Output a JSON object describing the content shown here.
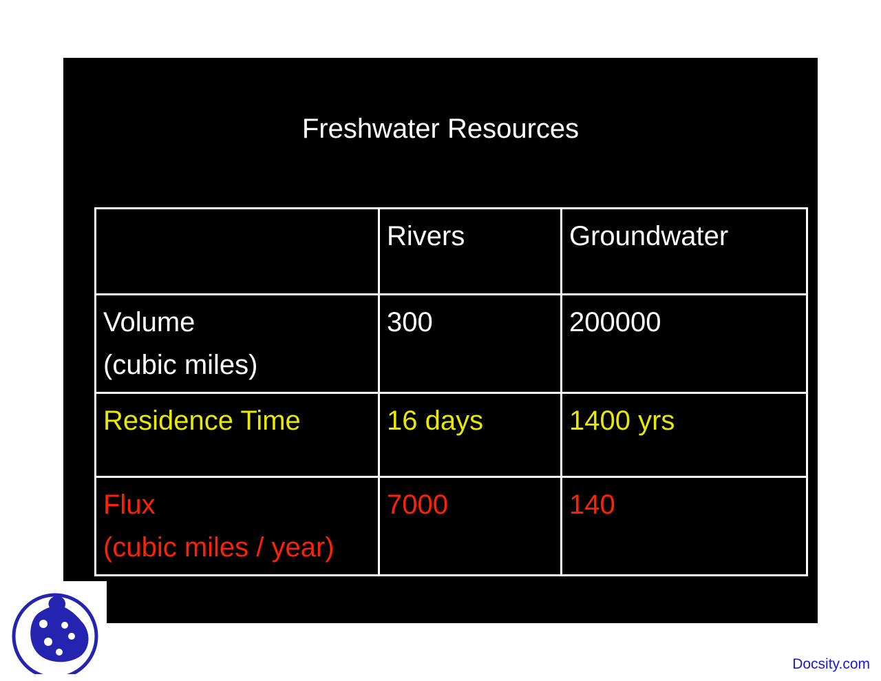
{
  "slide": {
    "title": "Freshwater Resources",
    "colors": {
      "background": "#000000",
      "text": "#ffffff",
      "residence": "#e8e800",
      "flux": "#ff2200",
      "brand": "#1a1acc"
    }
  },
  "table": {
    "header": [
      "",
      "Rivers",
      "Groundwater"
    ],
    "rows": [
      {
        "label_lines": [
          "Volume",
          "(cubic miles)"
        ],
        "rivers": "300",
        "groundwater": "200000"
      },
      {
        "label_lines": [
          "Residence Time"
        ],
        "rivers": "16 days",
        "groundwater": "1400 yrs"
      },
      {
        "label_lines": [
          "Flux",
          "(cubic miles / year)"
        ],
        "rivers": "7000",
        "groundwater": "140"
      }
    ]
  },
  "footer": {
    "brand": "Docsity.com",
    "logo_icon": "docsity-ladybug-logo-icon"
  }
}
